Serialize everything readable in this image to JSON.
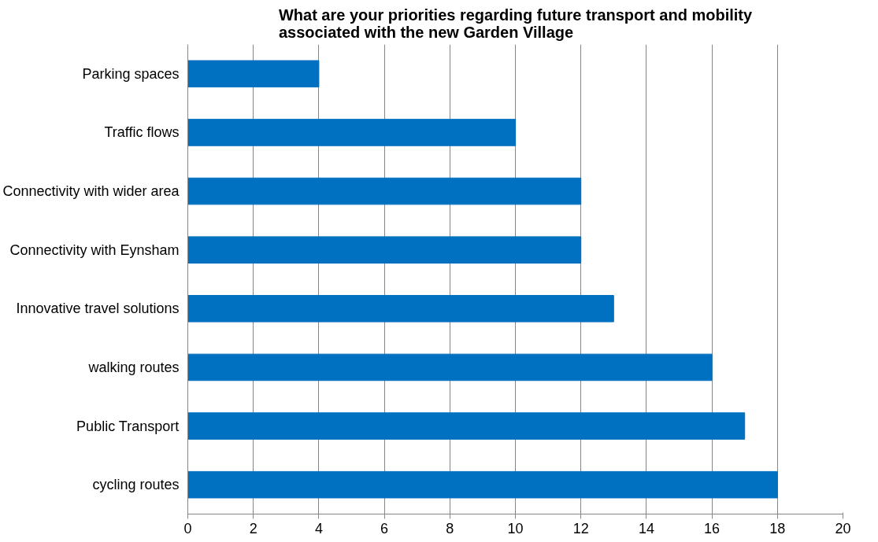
{
  "chart_data": {
    "type": "bar",
    "orientation": "horizontal",
    "title": "What are your priorities regarding future transport and mobility\nassociated with the  new Garden Village",
    "categories": [
      "Parking spaces",
      "Traffic flows",
      "Connectivity with wider area",
      "Connectivity with Eynsham",
      "Innovative travel solutions",
      "walking routes",
      "Public Transport",
      "cycling routes"
    ],
    "values": [
      4,
      10,
      12,
      12,
      13,
      16,
      17,
      18
    ],
    "color": "#0070c0",
    "xlim": [
      0,
      20
    ],
    "xticks": [
      0,
      2,
      4,
      6,
      8,
      10,
      12,
      14,
      16,
      18,
      20
    ],
    "grid": "x"
  }
}
